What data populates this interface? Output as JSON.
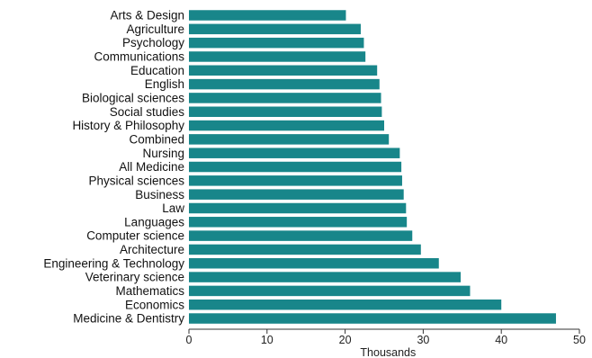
{
  "chart_data": {
    "type": "bar",
    "orientation": "horizontal",
    "title": "",
    "xlabel": "Thousands",
    "ylabel": "",
    "xlim": [
      0,
      50
    ],
    "xticks": [
      0,
      10,
      20,
      30,
      40,
      50
    ],
    "grid": false,
    "bar_color": "#18868a",
    "categories": [
      "Arts & Design",
      "Agriculture",
      "Psychology",
      "Communications",
      "Education",
      "English",
      "Biological sciences",
      "Social studies",
      "History & Philosophy",
      "Combined",
      "Nursing",
      "All Medicine",
      "Physical sciences",
      "Business",
      "Law",
      "Languages",
      "Computer science",
      "Architecture",
      "Engineering & Technology",
      "Veterinary science",
      "Mathematics",
      "Economics",
      "Medicine & Dentistry"
    ],
    "values": [
      20.1,
      22.0,
      22.4,
      22.6,
      24.1,
      24.4,
      24.6,
      24.7,
      25.0,
      25.6,
      27.0,
      27.2,
      27.3,
      27.5,
      27.8,
      27.9,
      28.6,
      29.7,
      32.0,
      34.8,
      36.0,
      40.0,
      47.0
    ]
  }
}
